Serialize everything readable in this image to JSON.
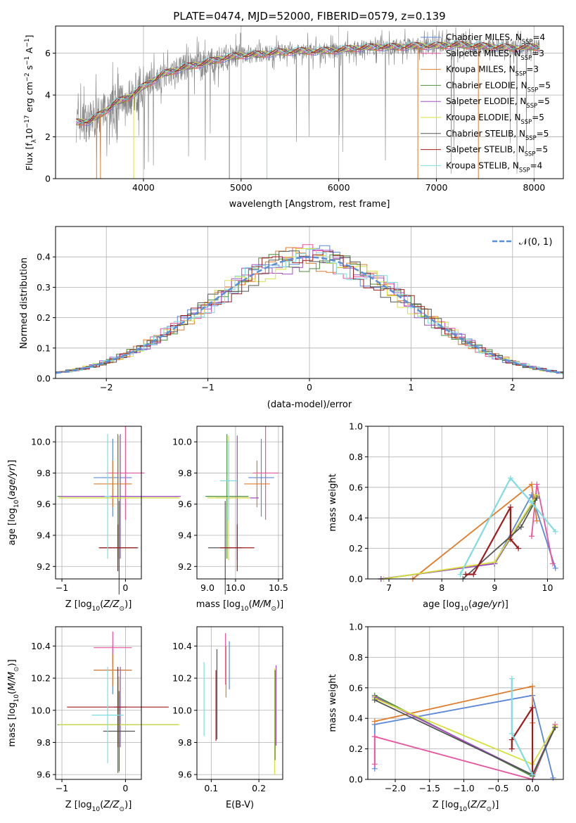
{
  "title": "PLATE=0474, MJD=52000, FIBERID=0579, z=0.139",
  "colors": {
    "chabrier_miles": "#5b87d9",
    "salpeter_miles": "#e8549e",
    "kroupa_miles": "#e07b2a",
    "chabrier_elodie": "#4c8f3c",
    "salpeter_elodie": "#a44ec6",
    "kroupa_elodie": "#d6e03a",
    "chabrier_stelib": "#555555",
    "salpeter_stelib": "#a01c1c",
    "kroupa_stelib": "#7fdde0",
    "data": "#808080",
    "normal": "#5b8fd6"
  },
  "chart_data": [
    {
      "id": "spectrum",
      "type": "line",
      "xlabel": "wavelength [Angstrom, rest frame]",
      "ylabel": "Flux [f_λ10^-17 erg cm^-2 s^-1 A^-1]",
      "xlim": [
        3100,
        8300
      ],
      "ylim": [
        0,
        7.3
      ],
      "xticks": [
        4000,
        5000,
        6000,
        7000,
        8000
      ],
      "yticks": [
        0,
        2,
        4,
        6
      ],
      "continuum": {
        "x": [
          3310,
          3450,
          3600,
          3700,
          3850,
          4000,
          4200,
          4400,
          4600,
          4800,
          5000,
          5200,
          5400,
          5600,
          5800,
          6000,
          6200,
          6400,
          6600,
          6800,
          7000,
          7200,
          7400,
          7600,
          7800,
          8000,
          8060
        ],
        "y": [
          2.7,
          2.75,
          3.2,
          3.6,
          3.9,
          4.4,
          5.0,
          5.3,
          5.5,
          5.75,
          5.9,
          5.95,
          6.05,
          6.1,
          6.1,
          6.15,
          6.25,
          6.3,
          6.3,
          6.35,
          6.35,
          6.4,
          6.35,
          6.3,
          6.25,
          6.3,
          6.28
        ]
      },
      "legend": [
        {
          "label": "Chabrier MILES, N_SSP=4",
          "key": "chabrier_miles"
        },
        {
          "label": "Salpeter MILES, N_SSP=3",
          "key": "salpeter_miles"
        },
        {
          "label": "Kroupa MILES, N_SSP=3",
          "key": "kroupa_miles"
        },
        {
          "label": "Chabrier ELODIE, N_SSP=5",
          "key": "chabrier_elodie"
        },
        {
          "label": "Salpeter ELODIE, N_SSP=5",
          "key": "salpeter_elodie"
        },
        {
          "label": "Kroupa ELODIE, N_SSP=5",
          "key": "kroupa_elodie"
        },
        {
          "label": "Chabrier STELIB, N_SSP=5",
          "key": "chabrier_stelib"
        },
        {
          "label": "Salpeter STELIB, N_SSP=5",
          "key": "salpeter_stelib"
        },
        {
          "label": "Kroupa STELIB, N_SSP=4",
          "key": "kroupa_stelib"
        }
      ]
    },
    {
      "id": "residuals",
      "type": "line",
      "xlabel": "(data-model)/error",
      "ylabel": "Normed distribution",
      "xlim": [
        -2.5,
        2.5
      ],
      "ylim": [
        0,
        0.5
      ],
      "xticks": [
        -2,
        -1,
        0,
        1,
        2
      ],
      "yticks": [
        0.0,
        0.1,
        0.2,
        0.3,
        0.4
      ],
      "legend": "𝒩(0, 1)"
    },
    {
      "id": "age_vs_Z",
      "type": "scatter",
      "xlabel": "Z [log10(Z/Z⊙)]",
      "ylabel": "age  [log10(age/yr)]",
      "xlim": [
        -1.1,
        0.25
      ],
      "ylim": [
        9.12,
        10.1
      ],
      "xticks": [
        -1,
        0
      ],
      "yticks": [
        9.2,
        9.4,
        9.6,
        9.8,
        10.0
      ],
      "points": [
        {
          "key": "chabrier_miles",
          "x": -0.2,
          "y": 9.77,
          "xerr": 0.3,
          "yerr": 0.25
        },
        {
          "key": "salpeter_miles",
          "x": 0.0,
          "y": 9.8,
          "xerr": 0.3,
          "yerr": 0.3
        },
        {
          "key": "kroupa_miles",
          "x": -0.2,
          "y": 9.73,
          "xerr": 0.3,
          "yerr": 0.15
        },
        {
          "key": "chabrier_elodie",
          "x": -0.12,
          "y": 9.65,
          "xerr": 0.95,
          "yerr": 0.4
        },
        {
          "key": "salpeter_elodie",
          "x": -0.08,
          "y": 9.65,
          "xerr": 0.95,
          "yerr": 0.4
        },
        {
          "key": "kroupa_elodie",
          "x": -0.1,
          "y": 9.64,
          "xerr": 0.95,
          "yerr": 0.4
        },
        {
          "key": "chabrier_stelib",
          "x": -0.1,
          "y": 9.32,
          "xerr": 0.3,
          "yerr": 0.3
        },
        {
          "key": "salpeter_stelib",
          "x": -0.12,
          "y": 9.32,
          "xerr": 0.3,
          "yerr": 0.15
        },
        {
          "key": "kroupa_stelib",
          "x": -0.28,
          "y": 9.65,
          "xerr": 0.05,
          "yerr": 0.4
        }
      ]
    },
    {
      "id": "age_vs_mass",
      "type": "scatter",
      "xlabel": "mass [log10(M/M⊙)]",
      "ylabel": "",
      "xlim": [
        9.55,
        10.55
      ],
      "ylim": [
        9.12,
        10.1
      ],
      "xticks": [
        10.0,
        10.5
      ],
      "xtick_labels": [
        "10.0",
        "10.5"
      ],
      "xtick_extra": {
        "value": 9.0,
        "label": "9.0"
      },
      "yticks": [
        9.2,
        9.4,
        9.6,
        9.8,
        10.0
      ],
      "points": [
        {
          "key": "chabrier_miles",
          "x": 10.3,
          "y": 9.77,
          "xerr": 0.15,
          "yerr": 0.25
        },
        {
          "key": "salpeter_miles",
          "x": 10.35,
          "y": 9.8,
          "xerr": 0.15,
          "yerr": 0.3
        },
        {
          "key": "kroupa_miles",
          "x": 10.25,
          "y": 9.73,
          "xerr": 0.15,
          "yerr": 0.15
        },
        {
          "key": "chabrier_elodie",
          "x": 9.9,
          "y": 9.65,
          "xerr": 0.25,
          "yerr": 0.4
        },
        {
          "key": "salpeter_elodie",
          "x": 10.02,
          "y": 9.64,
          "xerr": 0.25,
          "yerr": 0.4
        },
        {
          "key": "kroupa_elodie",
          "x": 9.92,
          "y": 9.64,
          "xerr": 0.25,
          "yerr": 0.4
        },
        {
          "key": "chabrier_stelib",
          "x": 9.88,
          "y": 9.32,
          "xerr": 0.2,
          "yerr": 0.3
        },
        {
          "key": "salpeter_stelib",
          "x": 10.02,
          "y": 9.32,
          "xerr": 0.2,
          "yerr": 0.15
        },
        {
          "key": "kroupa_stelib",
          "x": 9.92,
          "y": 9.75,
          "xerr": 0.1,
          "yerr": 0.25
        }
      ]
    },
    {
      "id": "weight_vs_age",
      "type": "line",
      "xlabel": "age  [log10(age/yr)]",
      "ylabel": "mass weight",
      "xlim": [
        6.6,
        10.3
      ],
      "ylim": [
        0,
        1.0
      ],
      "xticks": [
        7,
        8,
        9,
        10
      ],
      "yticks": [
        0.0,
        0.2,
        0.4,
        0.6,
        0.8,
        1.0
      ],
      "series": [
        {
          "key": "chabrier_miles",
          "x": [
            9.0,
            9.7,
            10.15
          ],
          "y": [
            0.1,
            0.55,
            0.07
          ]
        },
        {
          "key": "salpeter_miles",
          "x": [
            9.7,
            9.8,
            10.1
          ],
          "y": [
            0.28,
            0.62,
            0.1
          ]
        },
        {
          "key": "kroupa_miles",
          "x": [
            7.45,
            9.7,
            9.8
          ],
          "y": [
            0.0,
            0.62,
            0.38
          ]
        },
        {
          "key": "chabrier_elodie",
          "x": [
            6.85,
            9.0,
            9.8
          ],
          "y": [
            0.0,
            0.1,
            0.54
          ]
        },
        {
          "key": "salpeter_elodie",
          "x": [
            6.85,
            9.0,
            9.8
          ],
          "y": [
            0.0,
            0.1,
            0.55
          ]
        },
        {
          "key": "kroupa_elodie",
          "x": [
            6.9,
            9.0,
            9.8
          ],
          "y": [
            0.0,
            0.11,
            0.55
          ]
        },
        {
          "key": "chabrier_stelib",
          "x": [
            8.4,
            9.5,
            9.8
          ],
          "y": [
            0.0,
            0.34,
            0.53
          ]
        },
        {
          "key": "salpeter_stelib",
          "x": [
            8.45,
            8.6,
            9.3,
            9.3,
            9.45
          ],
          "y": [
            0.03,
            0.03,
            0.47,
            0.26,
            0.2
          ]
        },
        {
          "key": "kroupa_stelib",
          "x": [
            8.35,
            9.3,
            9.7,
            10.15
          ],
          "y": [
            0.03,
            0.66,
            0.5,
            0.31
          ]
        }
      ]
    },
    {
      "id": "mass_vs_Z",
      "type": "scatter",
      "xlabel": "Z [log10(Z/Z⊙)]",
      "ylabel": "mass [log10(M/M⊙)]",
      "xlim": [
        -1.1,
        0.25
      ],
      "ylim": [
        9.57,
        10.52
      ],
      "xticks": [
        -1,
        0
      ],
      "yticks": [
        9.6,
        9.8,
        10.0,
        10.2,
        10.4
      ],
      "points": [
        {
          "key": "chabrier_miles",
          "x": -0.2,
          "y": 10.25,
          "xerr": 0.3,
          "yerr": 0.15
        },
        {
          "key": "salpeter_miles",
          "x": -0.2,
          "y": 10.39,
          "xerr": 0.3,
          "yerr": 0.1
        },
        {
          "key": "kroupa_miles",
          "x": -0.2,
          "y": 10.25,
          "xerr": 0.3,
          "yerr": 0.1
        },
        {
          "key": "chabrier_elodie",
          "x": -0.12,
          "y": 9.91,
          "xerr": 0.95,
          "yerr": 0.3
        },
        {
          "key": "salpeter_elodie",
          "x": -0.08,
          "y": 10.02,
          "xerr": 0.1,
          "yerr": 0.25
        },
        {
          "key": "kroupa_elodie",
          "x": -0.1,
          "y": 9.91,
          "xerr": 0.95,
          "yerr": 0.3
        },
        {
          "key": "chabrier_stelib",
          "x": -0.1,
          "y": 9.87,
          "xerr": 0.25,
          "yerr": 0.25
        },
        {
          "key": "salpeter_stelib",
          "x": -0.12,
          "y": 10.02,
          "xerr": 0.8,
          "yerr": 0.25
        },
        {
          "key": "kroupa_stelib",
          "x": -0.28,
          "y": 9.97,
          "xerr": 0.25,
          "yerr": 0.3
        }
      ]
    },
    {
      "id": "mass_vs_ebv",
      "type": "scatter",
      "xlabel": "E(B-V)",
      "ylabel": "",
      "xlim": [
        0.07,
        0.25
      ],
      "ylim": [
        9.57,
        10.52
      ],
      "xticks": [
        0.1,
        0.2
      ],
      "yticks": [
        9.6,
        9.8,
        10.0,
        10.2,
        10.4
      ],
      "points": [
        {
          "key": "kroupa_stelib",
          "x": 0.085,
          "y": 10.07,
          "yerr": 0.23
        },
        {
          "key": "salpeter_stelib",
          "x": 0.11,
          "y": 10.03,
          "yerr": 0.22
        },
        {
          "key": "chabrier_stelib",
          "x": 0.112,
          "y": 10.1,
          "yerr": 0.28
        },
        {
          "key": "salpeter_miles",
          "x": 0.13,
          "y": 10.32,
          "yerr": 0.16
        },
        {
          "key": "kroupa_miles",
          "x": 0.131,
          "y": 10.24,
          "yerr": 0.16
        },
        {
          "key": "chabrier_miles",
          "x": 0.138,
          "y": 10.28,
          "yerr": 0.15
        },
        {
          "key": "kroupa_elodie",
          "x": 0.233,
          "y": 9.93,
          "yerr": 0.33
        },
        {
          "key": "chabrier_elodie",
          "x": 0.234,
          "y": 9.97,
          "yerr": 0.28
        },
        {
          "key": "salpeter_elodie",
          "x": 0.236,
          "y": 10.03,
          "yerr": 0.25
        }
      ]
    },
    {
      "id": "weight_vs_Z",
      "type": "line",
      "xlabel": "Z [log10(Z/Z⊙)]",
      "ylabel": "mass weight",
      "xlim": [
        -2.4,
        0.45
      ],
      "ylim": [
        0,
        1.0
      ],
      "xticks": [
        -2.0,
        -1.5,
        -1.0,
        -0.5,
        0.0
      ],
      "yticks": [
        0.0,
        0.2,
        0.4,
        0.6,
        0.8,
        1.0
      ],
      "series": [
        {
          "key": "chabrier_miles",
          "x": [
            -2.3,
            -2.3,
            0.0,
            0.3
          ],
          "y": [
            0.07,
            0.36,
            0.55,
            0.01
          ]
        },
        {
          "key": "salpeter_miles",
          "x": [
            -2.3,
            -2.3,
            0.0,
            0.33
          ],
          "y": [
            0.1,
            0.28,
            0.0,
            0.36
          ]
        },
        {
          "key": "kroupa_miles",
          "x": [
            -2.3,
            0.0,
            0.0
          ],
          "y": [
            0.38,
            0.61,
            0.37
          ]
        },
        {
          "key": "chabrier_elodie",
          "x": [
            -2.3,
            0.0,
            0.33
          ],
          "y": [
            0.55,
            0.02,
            0.34
          ]
        },
        {
          "key": "salpeter_elodie",
          "x": [
            -2.3,
            0.0,
            0.33
          ],
          "y": [
            0.54,
            0.03,
            0.35
          ]
        },
        {
          "key": "kroupa_elodie",
          "x": [
            -2.3,
            0.0,
            0.33
          ],
          "y": [
            0.53,
            0.1,
            0.35
          ]
        },
        {
          "key": "chabrier_stelib",
          "x": [
            -2.3,
            0.0,
            0.33
          ],
          "y": [
            0.52,
            0.03,
            0.34
          ]
        },
        {
          "key": "salpeter_stelib",
          "x": [
            -0.3,
            -0.3,
            0.0,
            0.0
          ],
          "y": [
            0.2,
            0.26,
            0.47,
            0.03
          ]
        },
        {
          "key": "kroupa_stelib",
          "x": [
            -0.3,
            -0.3,
            0.0
          ],
          "y": [
            0.66,
            0.3,
            0.03
          ]
        }
      ]
    }
  ]
}
